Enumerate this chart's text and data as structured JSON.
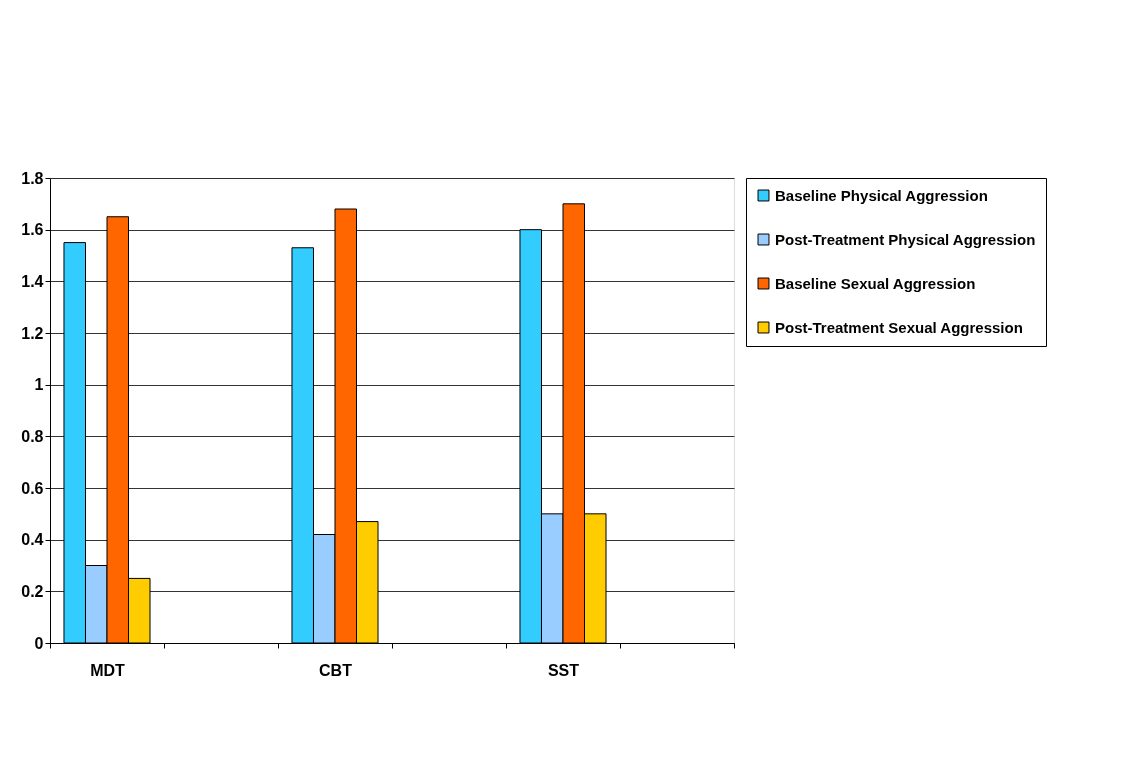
{
  "chart_data": {
    "type": "bar",
    "categories": [
      "MDT",
      null,
      "CBT",
      null,
      "SST",
      null
    ],
    "series": [
      {
        "name": "Baseline Physical Aggression",
        "color": "#33ccff",
        "values": [
          1.55,
          null,
          1.53,
          null,
          1.6,
          null
        ]
      },
      {
        "name": "Post-Treatment Physical Aggression",
        "color": "#99ccff",
        "values": [
          0.3,
          null,
          0.42,
          null,
          0.5,
          null
        ]
      },
      {
        "name": "Baseline Sexual Aggression",
        "color": "#ff6600",
        "values": [
          1.65,
          null,
          1.68,
          null,
          1.7,
          null
        ]
      },
      {
        "name": "Post-Treatment Sexual Aggression",
        "color": "#ffcc00",
        "values": [
          0.25,
          null,
          0.47,
          null,
          0.5,
          null
        ]
      }
    ],
    "ylim": [
      0,
      1.8
    ],
    "yticks": [
      0,
      0.2,
      0.4,
      0.6,
      0.8,
      1,
      1.2,
      1.4,
      1.6,
      1.8
    ],
    "grid": "y",
    "legend": "right"
  }
}
